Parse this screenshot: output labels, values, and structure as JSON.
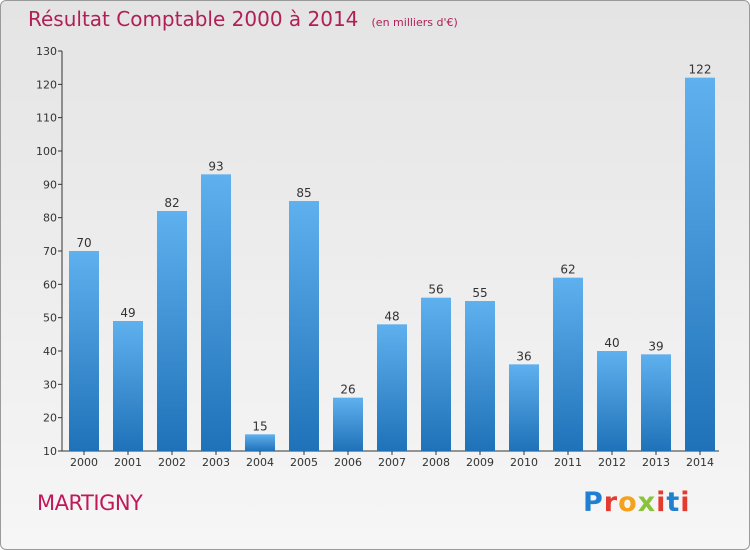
{
  "header": {
    "title": "Résultat Comptable 2000 à 2014",
    "unit": "(en milliers d'€)"
  },
  "footer": {
    "city": "MARTIGNY",
    "logo_letters": [
      "P",
      "r",
      "o",
      "x",
      "i",
      "t",
      "i"
    ],
    "logo_colors": [
      "#1f7fd0",
      "#e53a2f",
      "#f4a11b",
      "#8bc23c",
      "#e53a2f",
      "#1f7fd0",
      "#e53a2f"
    ]
  },
  "colors": {
    "title": "#b01f56",
    "bar_top": "#5fb0ee",
    "bar_bottom": "#1f72b8"
  },
  "chart_data": {
    "type": "bar",
    "title": "Résultat Comptable 2000 à 2014",
    "subtitle": "(en milliers d'€)",
    "xlabel": "",
    "ylabel": "",
    "categories": [
      "2000",
      "2001",
      "2002",
      "2003",
      "2004",
      "2005",
      "2006",
      "2007",
      "2008",
      "2009",
      "2010",
      "2011",
      "2012",
      "2013",
      "2014"
    ],
    "values": [
      70,
      49,
      82,
      93,
      15,
      85,
      26,
      48,
      56,
      55,
      36,
      62,
      40,
      39,
      122
    ],
    "ylim": [
      10,
      130
    ],
    "yticks": [
      10,
      20,
      30,
      40,
      50,
      60,
      70,
      80,
      90,
      100,
      110,
      120,
      130
    ],
    "grid": false,
    "legend": "none"
  }
}
